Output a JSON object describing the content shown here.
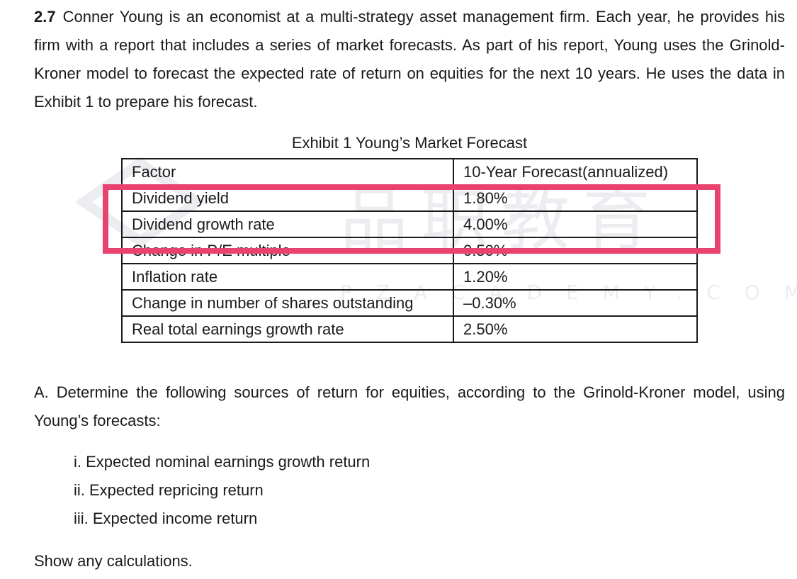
{
  "intro": {
    "number": "2.7",
    "text": "Conner Young is an economist at a multi-strategy asset management firm. Each year, he provides his firm with a report that includes a series of market forecasts. As part of his report, Young uses the Grinold-Kroner model to forecast the expected rate of return on equities for the next 10 years. He uses the data in Exhibit 1 to prepare his forecast."
  },
  "exhibit": {
    "caption": "Exhibit 1 Young’s Market Forecast",
    "headers": [
      "Factor",
      "10-Year Forecast(annualized)"
    ],
    "rows": [
      [
        "Dividend yield",
        "1.80%"
      ],
      [
        "Dividend growth rate",
        "4.00%"
      ],
      [
        "Change in P/E multiple",
        "0.50%"
      ],
      [
        "Inflation rate",
        "1.20%"
      ],
      [
        "Change in number of shares outstanding",
        "–0.30%"
      ],
      [
        "Real total earnings growth rate",
        "2.50%"
      ]
    ]
  },
  "highlight_color": "#e8426e",
  "watermark": {
    "chinese": "品职教育",
    "english": "PZACADEMY.COM"
  },
  "question": {
    "prompt": "A. Determine the following sources of return for equities, according to the Grinold-Kroner model, using Young’s forecasts:",
    "items": [
      "i. Expected nominal earnings growth return",
      "ii. Expected repricing return",
      "iii. Expected income return"
    ],
    "closing": "Show any calculations."
  }
}
